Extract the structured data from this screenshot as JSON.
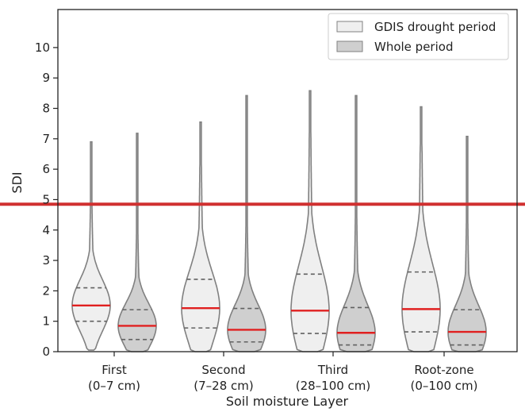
{
  "chart_data": {
    "type": "violin",
    "xlabel": "Soil moisture Layer",
    "ylabel": "SDI",
    "ylim": [
      0,
      11.25
    ],
    "yticks": [
      0,
      1,
      2,
      3,
      4,
      5,
      6,
      7,
      8,
      9,
      10
    ],
    "grid": false,
    "legend_position": "top-right",
    "categories": [
      {
        "line1": "First",
        "line2": "(0–7 cm)"
      },
      {
        "line1": "Second",
        "line2": "(7–28 cm)"
      },
      {
        "line1": "Third",
        "line2": "(28–100 cm)"
      },
      {
        "line1": "Root-zone",
        "line2": "(0–100 cm)"
      }
    ],
    "series": [
      {
        "name": "GDIS drought period",
        "color": "#efefef",
        "violins": [
          {
            "min": 0.05,
            "max": 6.9,
            "q1": 1.0,
            "median": 1.52,
            "q3": 2.1
          },
          {
            "min": 0.0,
            "max": 7.55,
            "q1": 0.78,
            "median": 1.43,
            "q3": 2.38
          },
          {
            "min": 0.0,
            "max": 8.58,
            "q1": 0.6,
            "median": 1.35,
            "q3": 2.55
          },
          {
            "min": 0.0,
            "max": 8.05,
            "q1": 0.65,
            "median": 1.4,
            "q3": 2.62
          }
        ]
      },
      {
        "name": "Whole period",
        "color": "#cfcfcf",
        "violins": [
          {
            "min": 0.0,
            "max": 7.18,
            "q1": 0.4,
            "median": 0.85,
            "q3": 1.38
          },
          {
            "min": 0.0,
            "max": 8.42,
            "q1": 0.32,
            "median": 0.72,
            "q3": 1.42
          },
          {
            "min": 0.0,
            "max": 8.42,
            "q1": 0.22,
            "median": 0.62,
            "q3": 1.45
          },
          {
            "min": 0.0,
            "max": 7.08,
            "q1": 0.22,
            "median": 0.65,
            "q3": 1.38
          }
        ]
      }
    ],
    "reference_line": {
      "y": 4.85,
      "color": "#d03030"
    },
    "colors": {
      "outline": "#808080",
      "median": "#e02020",
      "quartile": "#606060"
    }
  }
}
